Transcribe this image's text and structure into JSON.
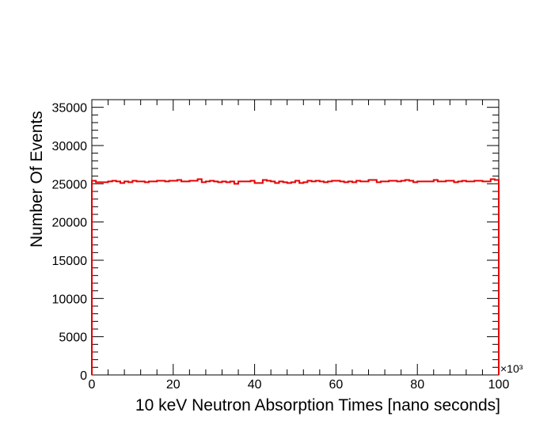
{
  "chart_data": {
    "type": "histogram",
    "xlabel": "10 keV Neutron Absorption Times [nano seconds]",
    "ylabel": "Number Of Events",
    "x_exponent_label": "×10³",
    "xlim": [
      0,
      100000
    ],
    "ylim": [
      0,
      36000
    ],
    "x_ticks": [
      0,
      20,
      40,
      60,
      80,
      100
    ],
    "y_ticks": [
      0,
      5000,
      10000,
      15000,
      20000,
      25000,
      30000,
      35000
    ],
    "x_tick_labels": [
      "0",
      "20",
      "40",
      "60",
      "80",
      "100"
    ],
    "y_tick_labels": [
      "0",
      "5000",
      "10000",
      "15000",
      "20000",
      "25000",
      "30000",
      "35000"
    ],
    "bin_width": 1000,
    "x_bin_edges_start": 0,
    "values": [
      25400,
      25200,
      25200,
      25200,
      25300,
      25400,
      25300,
      25100,
      25300,
      25200,
      25400,
      25300,
      25300,
      25200,
      25300,
      25300,
      25400,
      25400,
      25300,
      25400,
      25400,
      25500,
      25300,
      25300,
      25400,
      25400,
      25600,
      25200,
      25300,
      25400,
      25300,
      25200,
      25300,
      25200,
      25300,
      25000,
      25300,
      25300,
      25300,
      25400,
      25100,
      25100,
      25500,
      25400,
      25300,
      25100,
      25300,
      25200,
      25100,
      25200,
      25400,
      25100,
      25200,
      25400,
      25300,
      25400,
      25300,
      25200,
      25300,
      25400,
      25400,
      25300,
      25200,
      25300,
      25200,
      25400,
      25300,
      25300,
      25500,
      25500,
      25200,
      25300,
      25300,
      25400,
      25400,
      25300,
      25400,
      25500,
      25400,
      25200,
      25300,
      25300,
      25300,
      25300,
      25500,
      25300,
      25300,
      25400,
      25400,
      25200,
      25300,
      25400,
      25300,
      25300,
      25400,
      25400,
      25300,
      25300,
      25600,
      25500
    ],
    "line_color": "#e60000",
    "grid": false,
    "legend": "none"
  }
}
